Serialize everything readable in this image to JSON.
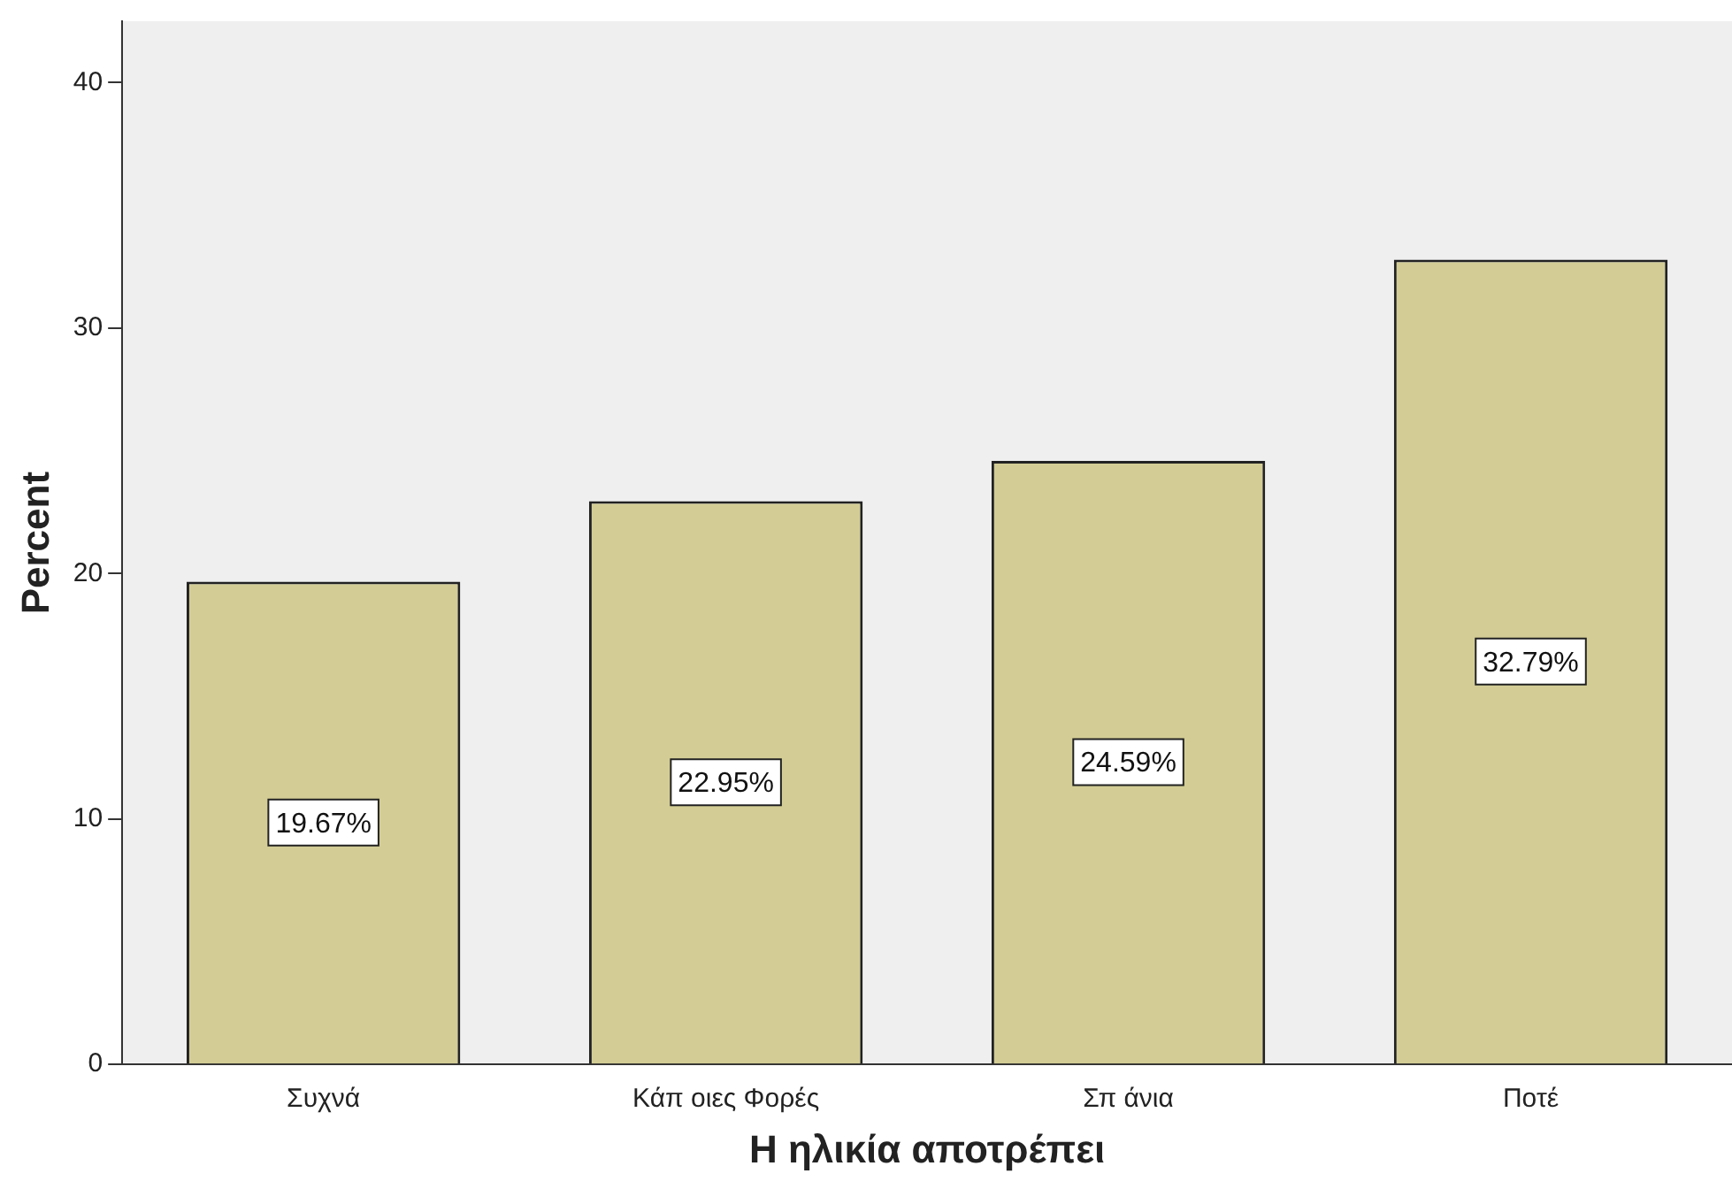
{
  "chart_data": {
    "type": "bar",
    "xlabel": "Η ηλικία αποτρέπει",
    "ylabel": "Percent",
    "categories": [
      "Συχνά",
      "Κάπ οιες Φορές",
      "Σπ άνια",
      "Ποτέ"
    ],
    "values": [
      19.67,
      22.95,
      24.59,
      32.79
    ],
    "value_labels": [
      "19.67%",
      "22.95%",
      "24.59%",
      "32.79%"
    ],
    "color": "#d3cd95",
    "ylim": [
      0,
      42.5
    ],
    "yticks": [
      0,
      10,
      20,
      30,
      40
    ],
    "grid": false,
    "legend": false
  }
}
